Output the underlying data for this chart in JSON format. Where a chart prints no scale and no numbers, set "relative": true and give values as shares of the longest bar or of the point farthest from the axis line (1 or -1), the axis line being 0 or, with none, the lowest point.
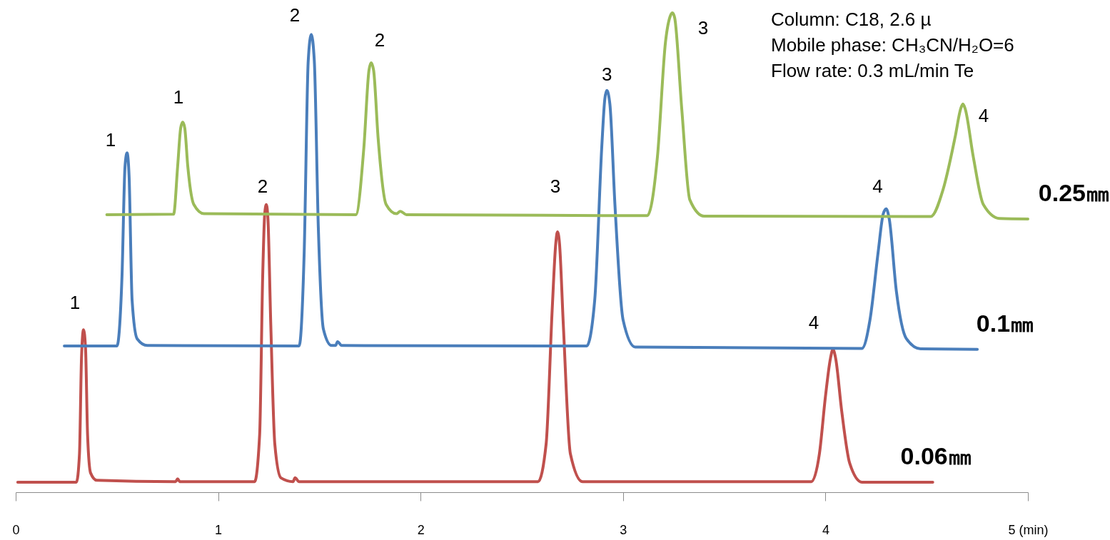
{
  "chart_data": {
    "type": "line",
    "relative": true,
    "grid": false,
    "xlim": [
      0,
      5
    ],
    "xticks": [
      0,
      1,
      2,
      3,
      4,
      {
        "value": 5,
        "label": "5 (min)"
      }
    ],
    "series": [
      {
        "name": "0.06㎜",
        "color": "#c0504d",
        "x": [
          0.01,
          0.3,
          0.315,
          0.325,
          0.335,
          0.345,
          0.355,
          0.37,
          0.4,
          0.79,
          0.8,
          0.81,
          1.18,
          1.205,
          1.22,
          1.23,
          1.238,
          1.246,
          1.26,
          1.28,
          1.31,
          1.37,
          1.38,
          1.4,
          2.58,
          2.62,
          2.65,
          2.668,
          2.676,
          2.686,
          2.705,
          2.74,
          2.8,
          3.93,
          3.97,
          4.0,
          4.025,
          4.037,
          4.05,
          4.08,
          4.12,
          4.18,
          4.53
        ],
        "values": [
          0.021,
          0.021,
          0.08,
          0.28,
          0.339,
          0.3,
          0.12,
          0.04,
          0.025,
          0.022,
          0.028,
          0.022,
          0.022,
          0.12,
          0.45,
          0.58,
          0.6,
          0.57,
          0.35,
          0.1,
          0.03,
          0.022,
          0.03,
          0.022,
          0.022,
          0.1,
          0.38,
          0.52,
          0.543,
          0.52,
          0.35,
          0.08,
          0.022,
          0.022,
          0.08,
          0.2,
          0.28,
          0.298,
          0.28,
          0.17,
          0.06,
          0.021,
          0.021
        ]
      },
      {
        "name": "0.1㎜",
        "color": "#4a7ebb",
        "x": [
          0.24,
          0.5,
          0.525,
          0.54,
          0.55,
          0.56,
          0.575,
          0.6,
          0.65,
          1.4,
          1.425,
          1.445,
          1.46,
          1.475,
          1.495,
          1.52,
          1.56,
          1.58,
          1.59,
          1.61,
          2.82,
          2.86,
          2.895,
          2.91,
          2.92,
          2.935,
          2.96,
          3.0,
          3.06,
          4.18,
          4.22,
          4.26,
          4.285,
          4.3,
          4.315,
          4.35,
          4.4,
          4.47,
          4.75
        ],
        "values": [
          0.305,
          0.305,
          0.45,
          0.68,
          0.708,
          0.66,
          0.4,
          0.32,
          0.306,
          0.305,
          0.5,
          0.9,
          0.955,
          0.9,
          0.55,
          0.34,
          0.306,
          0.306,
          0.314,
          0.306,
          0.305,
          0.4,
          0.72,
          0.82,
          0.838,
          0.81,
          0.6,
          0.36,
          0.303,
          0.3,
          0.36,
          0.5,
          0.58,
          0.591,
          0.57,
          0.42,
          0.32,
          0.299,
          0.298
        ]
      },
      {
        "name": "0.25㎜",
        "color": "#9bbb59",
        "x": [
          0.45,
          0.78,
          0.8,
          0.815,
          0.825,
          0.835,
          0.85,
          0.88,
          0.93,
          1.68,
          1.72,
          1.745,
          1.756,
          1.768,
          1.79,
          1.83,
          1.88,
          1.9,
          1.93,
          3.12,
          3.17,
          3.21,
          3.235,
          3.244,
          3.255,
          3.29,
          3.33,
          3.4,
          4.52,
          4.58,
          4.64,
          4.668,
          4.679,
          4.69,
          4.73,
          4.78,
          4.86,
          5.0
        ],
        "values": [
          0.579,
          0.58,
          0.68,
          0.76,
          0.772,
          0.76,
          0.68,
          0.6,
          0.581,
          0.579,
          0.72,
          0.88,
          0.896,
          0.88,
          0.74,
          0.6,
          0.581,
          0.586,
          0.579,
          0.577,
          0.7,
          0.94,
          0.995,
          1.0,
          0.99,
          0.8,
          0.61,
          0.576,
          0.575,
          0.63,
          0.74,
          0.8,
          0.81,
          0.8,
          0.7,
          0.6,
          0.571,
          0.57
        ]
      }
    ],
    "annotations": [
      {
        "text": "1",
        "x": 0.335,
        "y": 0.339
      },
      {
        "text": "2",
        "x": 1.238,
        "y": 0.6
      },
      {
        "text": "3",
        "x": 2.676,
        "y": 0.543
      },
      {
        "text": "4",
        "x": 4.037,
        "y": 0.298
      },
      {
        "text": "1",
        "x": 0.55,
        "y": 0.708
      },
      {
        "text": "2",
        "x": 1.46,
        "y": 0.955
      },
      {
        "text": "3",
        "x": 2.92,
        "y": 0.838
      },
      {
        "text": "4",
        "x": 4.3,
        "y": 0.591
      },
      {
        "text": "1",
        "x": 0.825,
        "y": 0.772
      },
      {
        "text": "2",
        "x": 1.756,
        "y": 0.896
      },
      {
        "text": "3",
        "x": 3.244,
        "y": 1.0
      },
      {
        "text": "4",
        "x": 4.679,
        "y": 0.81
      },
      "Column: C18, 2.6 µ",
      "Mobile phase: CH₃CN/H₂O=6",
      "Flow rate: 0.3 mL/min      Te"
    ]
  }
}
